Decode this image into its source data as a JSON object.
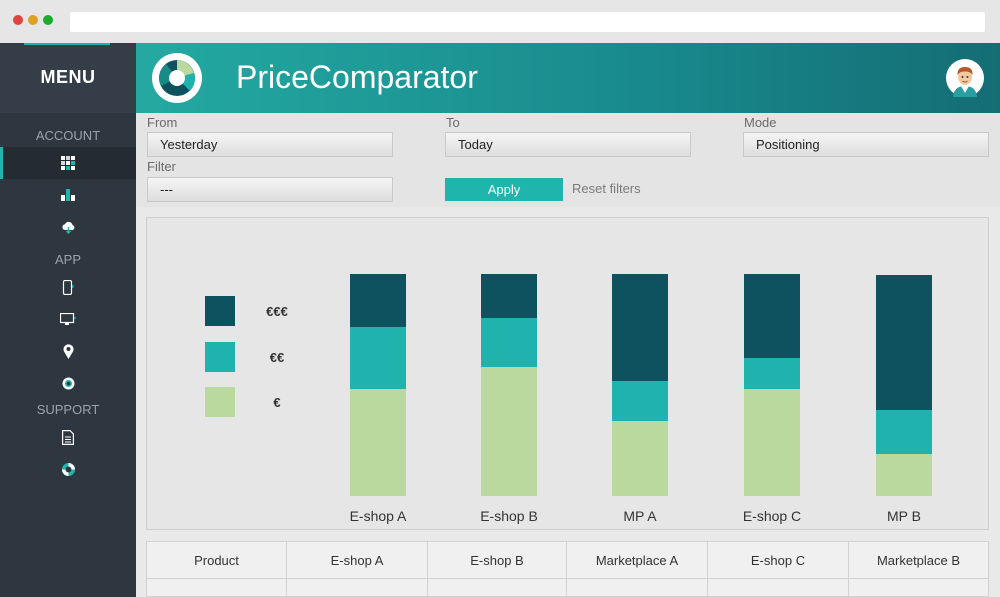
{
  "sidebar": {
    "menu_title": "MENU",
    "sections": {
      "account": "ACCOUNT",
      "app": "APP",
      "support": "SUPPORT"
    },
    "account_icons": [
      "grid-icon",
      "bar-chart-icon",
      "cloud-icon"
    ],
    "app_icons": [
      "mobile-icon",
      "monitor-icon",
      "map-pin-icon",
      "gear-icon"
    ],
    "support_icons": [
      "document-icon",
      "lifebuoy-icon"
    ]
  },
  "header": {
    "title": "PriceComparator"
  },
  "filters": {
    "from_label": "From",
    "from_value": "Yesterday",
    "to_label": "To",
    "to_value": "Today",
    "mode_label": "Mode",
    "mode_value": "Positioning",
    "filter_label": "Filter",
    "filter_value": "---",
    "apply_label": "Apply",
    "reset_label": "Reset filters"
  },
  "colors": {
    "accent": "#1fb5ad",
    "dark_teal": "#0f525f",
    "light_green": "#b9d99e"
  },
  "chart_data": {
    "type": "bar",
    "stacked": true,
    "categories": [
      "E-shop A",
      "E-shop B",
      "MP A",
      "E-shop C",
      "MP B"
    ],
    "series": [
      {
        "name": "€",
        "color": "#b9d99e",
        "values": [
          48,
          58,
          34,
          48,
          19
        ]
      },
      {
        "name": "€€",
        "color": "#20b3ad",
        "values": [
          28,
          22,
          18,
          14,
          20
        ]
      },
      {
        "name": "€€€",
        "color": "#0f525f",
        "values": [
          24,
          20,
          48,
          38,
          61
        ]
      }
    ],
    "legend_order": [
      "€€€",
      "€€",
      "€"
    ],
    "ylim": [
      0,
      100
    ],
    "grid": false,
    "legend_position": "left"
  },
  "table": {
    "headers": [
      "Product",
      "E-shop A",
      "E-shop B",
      "Marketplace A",
      "E-shop C",
      "Marketplace B"
    ]
  }
}
